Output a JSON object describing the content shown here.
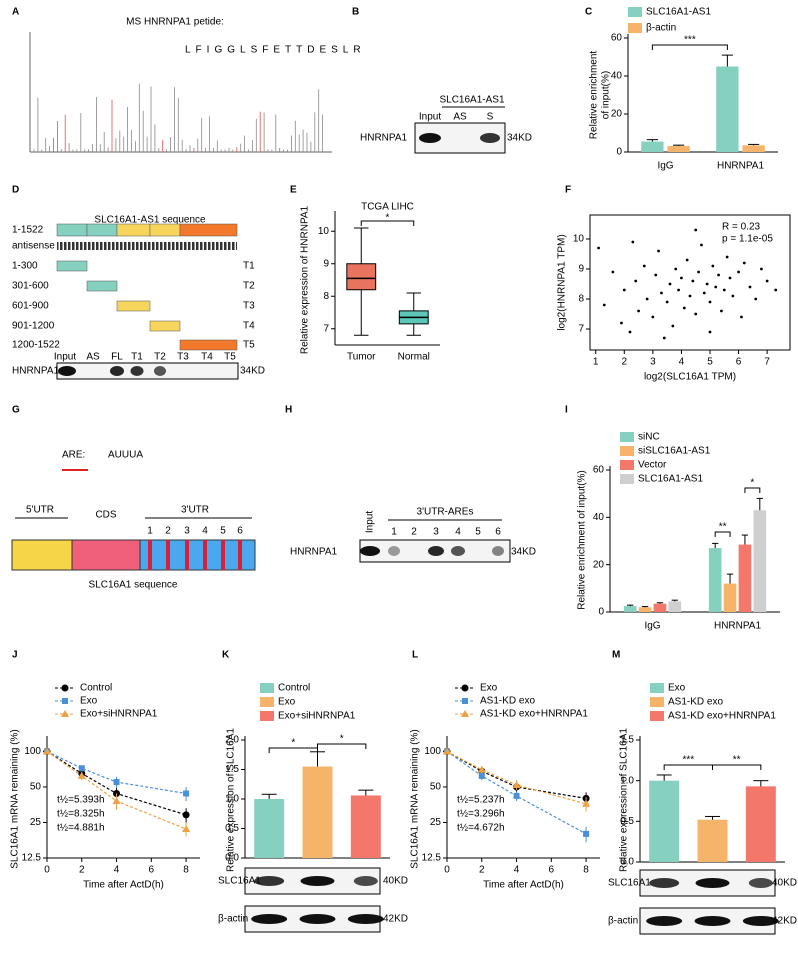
{
  "panel_A": {
    "label": "A",
    "title": "MS HNRNPA1 petide:",
    "peptide": "LFIGGLSFETTDESLR"
  },
  "panel_B": {
    "label": "B",
    "group": "SLC16A1-AS1",
    "lanes": [
      "Input",
      "AS",
      "S"
    ],
    "protein": "HNRNPA1",
    "size": "34KD"
  },
  "panel_D": {
    "label": "D",
    "title": "SLC16A1-AS1 sequence",
    "constructs": [
      {
        "range": "1-1522"
      },
      {
        "range": "antisense"
      },
      {
        "range": "1-300",
        "name": "T1"
      },
      {
        "range": "301-600",
        "name": "T2"
      },
      {
        "range": "601-900",
        "name": "T3"
      },
      {
        "range": "901-1200",
        "name": "T4"
      },
      {
        "range": "1200-1522",
        "name": "T5"
      }
    ],
    "lanes": [
      "Input",
      "AS",
      "FL",
      "T1",
      "T2",
      "T3",
      "T4",
      "T5"
    ],
    "protein": "HNRNPA1",
    "size": "34KD"
  },
  "panel_G": {
    "label": "G",
    "motif_name": "ARE:",
    "motif": [
      "A",
      "UUU",
      "A"
    ],
    "regions": [
      "5'UTR",
      "CDS",
      "3'UTR"
    ],
    "sites": [
      "1",
      "2",
      "3",
      "4",
      "5",
      "6"
    ],
    "caption": "SLC16A1 sequence"
  },
  "panel_H": {
    "label": "H",
    "group": "3'UTR-AREs",
    "lanes": [
      "Input",
      "1",
      "2",
      "3",
      "4",
      "5",
      "6"
    ],
    "protein": "HNRNPA1",
    "size": "34KD"
  },
  "chart_data": [
    {
      "type": "bar",
      "label": "C",
      "ylabel": [
        "Relative enrichment",
        "of input(%)"
      ],
      "categories": [
        "IgG",
        "HNRNPA1"
      ],
      "series": [
        {
          "name": "SLC16A1-AS1",
          "color": "#86d0c0",
          "values": [
            5.5,
            45
          ],
          "errors": [
            1,
            6
          ]
        },
        {
          "name": "β-actin",
          "color": "#f6b36a",
          "values": [
            3.2,
            3.5
          ],
          "errors": [
            0.4,
            0.5
          ]
        }
      ],
      "ylim": [
        0,
        60
      ],
      "yticks": [
        0,
        20,
        40,
        60
      ],
      "annotations": [
        "***"
      ]
    },
    {
      "type": "box",
      "label": "E",
      "title": "TCGA LIHC",
      "ylabel": "Relative expression of HNRNPA1",
      "categories": [
        "Tumor",
        "Normal"
      ],
      "colors": [
        "#e8735f",
        "#5cc6b9"
      ],
      "boxes": [
        {
          "whislo": 6.8,
          "q1": 8.2,
          "median": 8.55,
          "q3": 9.0,
          "whishi": 10.1
        },
        {
          "whislo": 6.8,
          "q1": 7.15,
          "median": 7.35,
          "q3": 7.55,
          "whishi": 8.1
        }
      ],
      "ylim": [
        6.5,
        10.5
      ],
      "yticks": [
        7,
        8,
        9,
        10
      ],
      "annotations": [
        "*"
      ]
    },
    {
      "type": "scatter",
      "label": "F",
      "xlabel": "log2(SLC16A1 TPM)",
      "ylabel": "log2(HNRNPA1 TPM)",
      "annotations": [
        "R = 0.23",
        "p = 1.1e-05"
      ],
      "x": [
        1.3,
        1.6,
        1.9,
        2.0,
        2.2,
        2.4,
        2.5,
        2.7,
        2.8,
        3.0,
        3.1,
        3.2,
        3.3,
        3.5,
        3.6,
        3.7,
        3.8,
        3.9,
        4.0,
        4.1,
        4.2,
        4.3,
        4.4,
        4.5,
        4.6,
        4.7,
        4.8,
        4.9,
        5.0,
        5.1,
        5.2,
        5.3,
        5.4,
        5.5,
        5.6,
        5.7,
        5.8,
        6.0,
        6.2,
        6.4,
        6.6,
        6.8,
        7.0,
        7.3,
        2.3,
        3.4,
        4.5,
        5.0,
        6.1,
        1.1
      ],
      "y": [
        7.8,
        8.9,
        7.2,
        8.3,
        6.9,
        8.6,
        7.6,
        9.1,
        8.0,
        7.4,
        8.8,
        9.6,
        8.2,
        7.9,
        8.5,
        7.1,
        9.0,
        8.3,
        8.7,
        7.7,
        9.3,
        8.1,
        8.6,
        7.5,
        8.9,
        9.8,
        8.2,
        8.5,
        7.9,
        9.1,
        8.4,
        8.8,
        7.6,
        8.3,
        9.4,
        8.7,
        8.1,
        8.9,
        9.2,
        8.4,
        8.0,
        9.0,
        8.6,
        8.3,
        9.9,
        6.7,
        10.3,
        6.9,
        7.4,
        9.7
      ],
      "xlim": [
        0.8,
        7.8
      ],
      "xticks": [
        1,
        2,
        3,
        4,
        5,
        6,
        7
      ],
      "ylim": [
        6.3,
        10.8
      ],
      "yticks": [
        7,
        8,
        9,
        10
      ]
    },
    {
      "type": "bar",
      "label": "I",
      "ylabel": "Relative enrichment of input(%)",
      "categories": [
        "IgG",
        "HNRNPA1"
      ],
      "series": [
        {
          "name": "siNC",
          "color": "#86d0c0",
          "values": [
            2.5,
            27
          ],
          "errors": [
            0.4,
            2
          ]
        },
        {
          "name": "siSLC16A1-AS1",
          "color": "#f6b36a",
          "values": [
            2,
            12
          ],
          "errors": [
            0.3,
            4
          ]
        },
        {
          "name": "Vector",
          "color": "#f4776b",
          "values": [
            3.5,
            28.5
          ],
          "errors": [
            0.4,
            4
          ]
        },
        {
          "name": "SLC16A1-AS1",
          "color": "#cfcfcf",
          "values": [
            4.5,
            43
          ],
          "errors": [
            0.5,
            5
          ]
        }
      ],
      "ylim": [
        0,
        60
      ],
      "yticks": [
        0,
        20,
        40,
        60
      ],
      "annotations": [
        "**",
        "*"
      ]
    },
    {
      "type": "line",
      "label": "J",
      "xlabel": "Time after ActD(h)",
      "ylabel": "SLC16A1 mRNA remaining (%)",
      "x": [
        0,
        2,
        4,
        8
      ],
      "series": [
        {
          "name": "Control",
          "color": "#000000",
          "values": [
            100,
            65,
            44,
            29
          ],
          "errors": [
            0,
            6,
            7,
            4
          ]
        },
        {
          "name": "Exo",
          "color": "#4a90d9",
          "values": [
            100,
            72,
            55,
            44
          ],
          "errors": [
            0,
            4,
            6,
            6
          ]
        },
        {
          "name": "Exo+siHNRNPA1",
          "color": "#f0a040",
          "values": [
            100,
            62,
            38,
            22
          ],
          "errors": [
            0,
            5,
            6,
            3
          ]
        }
      ],
      "notes": [
        "t½=5.393h",
        "t½=8.325h",
        "t½=4.881h"
      ],
      "xlim": [
        0,
        8.8
      ],
      "xticks": [
        0,
        2,
        4,
        6,
        8
      ],
      "ylim": [
        12.5,
        125
      ],
      "yticks": [
        12.5,
        25,
        50,
        100
      ]
    },
    {
      "type": "bar",
      "label": "K",
      "ylabel": "Relative expression of SLC16A1",
      "categories": [
        "Control",
        "Exo",
        "Exo+siHNRNPA1"
      ],
      "colors": [
        "#86d0c0",
        "#f6b36a",
        "#f4776b"
      ],
      "values": [
        1.0,
        1.55,
        1.06
      ],
      "errors": [
        0.08,
        0.25,
        0.09
      ],
      "ylim": [
        0,
        2.0
      ],
      "yticks": [
        {
          "value": 0,
          "label": "0.0"
        },
        {
          "value": 0.5,
          "label": "0.5"
        },
        {
          "value": 1,
          "label": "1.0"
        },
        {
          "value": 1.5,
          "label": "1.5"
        },
        {
          "value": 2,
          "label": "2.0"
        }
      ],
      "annotations": [
        "*",
        "*"
      ],
      "blots": [
        {
          "name": "SLC16A1",
          "size": "40KD"
        },
        {
          "name": "β-actin",
          "size": "42KD"
        }
      ]
    },
    {
      "type": "line",
      "label": "L",
      "xlabel": "Time after ActD(h)",
      "ylabel": "SLC16A1 mRNA remaining (%)",
      "x": [
        0,
        2,
        4,
        8
      ],
      "series": [
        {
          "name": "Exo",
          "color": "#000000",
          "values": [
            100,
            68,
            50,
            40
          ],
          "errors": [
            0,
            6,
            6,
            5
          ]
        },
        {
          "name": "AS1-KD exo",
          "color": "#4a90d9",
          "values": [
            100,
            62,
            42,
            20
          ],
          "errors": [
            0,
            5,
            4,
            3
          ]
        },
        {
          "name": "AS1-KD exo+HNRNPA1",
          "color": "#f0a040",
          "values": [
            100,
            70,
            52,
            36
          ],
          "errors": [
            0,
            5,
            5,
            5
          ]
        }
      ],
      "notes": [
        "t½=5.237h",
        "t½=3.296h",
        "t½=4.672h"
      ],
      "xlim": [
        0,
        8.8
      ],
      "xticks": [
        0,
        2,
        4,
        6,
        8
      ],
      "ylim": [
        12.5,
        125
      ],
      "yticks": [
        12.5,
        25,
        50,
        100
      ]
    },
    {
      "type": "bar",
      "label": "M",
      "ylabel": "Relative expression of SLC16A1",
      "categories": [
        "Exo",
        "AS1-KD exo",
        "AS1-KD exo+HNRNPA1"
      ],
      "colors": [
        "#86d0c0",
        "#f6b36a",
        "#f4776b"
      ],
      "values": [
        1.0,
        0.52,
        0.93
      ],
      "errors": [
        0.07,
        0.04,
        0.07
      ],
      "ylim": [
        0,
        1.5
      ],
      "yticks": [
        {
          "value": 0,
          "label": "0.0"
        },
        {
          "value": 0.5,
          "label": "0.5"
        },
        {
          "value": 1,
          "label": "1.0"
        },
        {
          "value": 1.5,
          "label": "1.5"
        }
      ],
      "annotations": [
        "***",
        "**"
      ],
      "blots": [
        {
          "name": "SLC16A1",
          "size": "40KD"
        },
        {
          "name": "β-actin",
          "size": "42KD"
        }
      ]
    }
  ]
}
